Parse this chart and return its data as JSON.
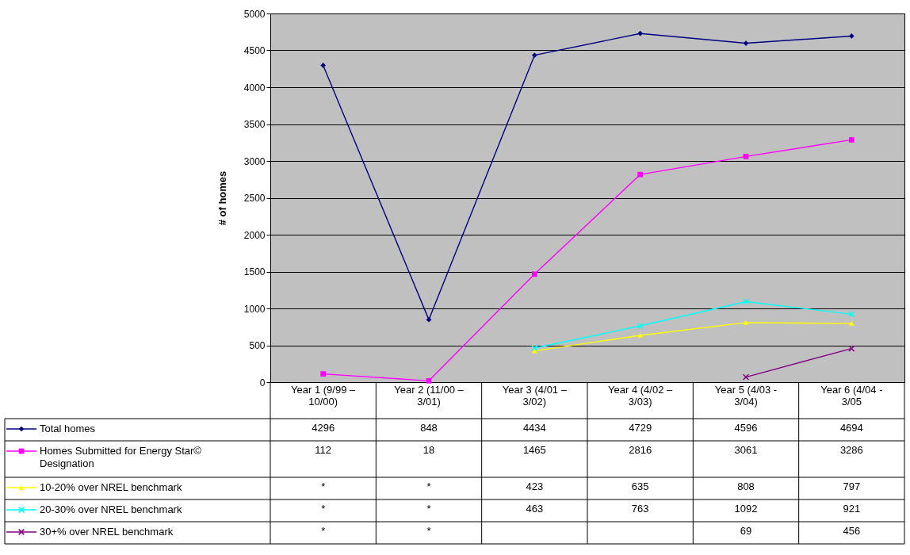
{
  "chart_data": {
    "type": "line",
    "ylabel": "# of homes",
    "categories": [
      "Year 1 (9/99 – 10/00)",
      "Year 2 (11/00 – 3/01)",
      "Year 3 (4/01 – 3/02)",
      "Year 4 (4/02 – 3/03)",
      "Year 5 (4/03 - 3/04)",
      "Year 6 (4/04 - 3/05"
    ],
    "ylim": [
      0,
      5000
    ],
    "yticks": [
      0,
      500,
      1000,
      1500,
      2000,
      2500,
      3000,
      3500,
      4000,
      4500,
      5000
    ],
    "grid": "y",
    "legend": "bottom left",
    "series": [
      {
        "name": "Total homes",
        "color": "#000080",
        "marker": "diamond",
        "values": [
          4296,
          848,
          4434,
          4729,
          4596,
          4694
        ],
        "value_labels": [
          "4296",
          "848",
          "4434",
          "4729",
          "4596",
          "4694"
        ]
      },
      {
        "name": "Homes Submitted for Energy Star© Designation",
        "color": "#ff00ff",
        "marker": "square",
        "values": [
          112,
          18,
          1465,
          2816,
          3061,
          3286
        ],
        "value_labels": [
          "112",
          "18",
          "1465",
          "2816",
          "3061",
          "3286"
        ]
      },
      {
        "name": "10-20% over NREL benchmark",
        "color": "#ffff00",
        "marker": "triangle",
        "values": [
          null,
          null,
          423,
          635,
          808,
          797
        ],
        "value_labels": [
          "*",
          "*",
          "423",
          "635",
          "808",
          "797"
        ]
      },
      {
        "name": "20-30% over NREL benchmark",
        "color": "#00ffff",
        "marker": "cross",
        "values": [
          null,
          null,
          463,
          763,
          1092,
          921
        ],
        "value_labels": [
          "*",
          "*",
          "463",
          "763",
          "1092",
          "921"
        ]
      },
      {
        "name": "30+% over NREL benchmark",
        "color": "#800080",
        "marker": "cross",
        "values": [
          null,
          null,
          null,
          null,
          69,
          456
        ],
        "value_labels": [
          "*",
          "*",
          null,
          null,
          "69",
          "456"
        ]
      }
    ]
  }
}
